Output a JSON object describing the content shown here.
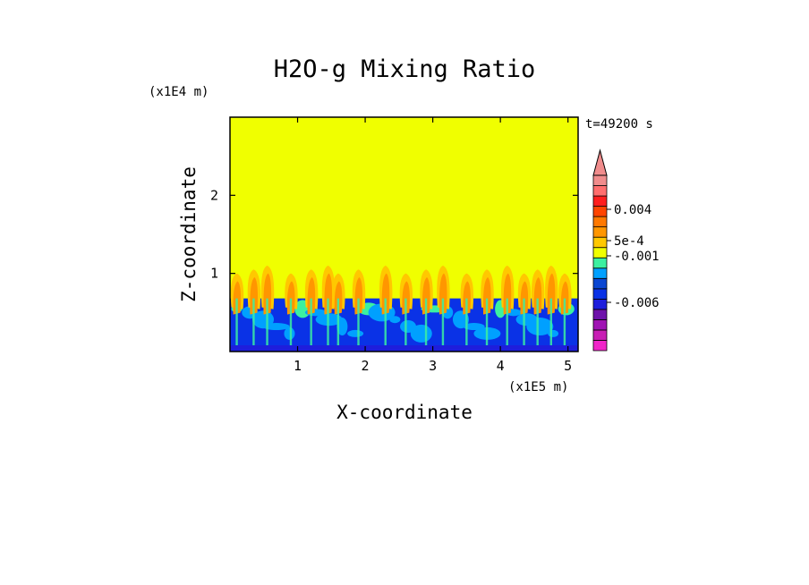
{
  "chart_data": {
    "type": "heatmap",
    "title": "H2O-g Mixing Ratio",
    "xlabel": "X-coordinate",
    "ylabel": "Z-coordinate",
    "x_scale_label": "(x1E5 m)",
    "z_scale_label": "(x1E4 m)",
    "time_label": "t=49200 s",
    "xlim": [
      0,
      5.15
    ],
    "zlim": [
      0,
      3.0
    ],
    "x_ticks": [
      1,
      2,
      3,
      4,
      5
    ],
    "z_ticks": [
      1,
      2
    ],
    "x_tick_labels": [
      "1",
      "2",
      "3",
      "4",
      "5"
    ],
    "z_tick_labels": [
      "1",
      "2"
    ],
    "background_value_color": "#f0ff00",
    "boundary_layer_top": 0.68,
    "colorbar": {
      "colors": [
        "#f025c8",
        "#c81eb4",
        "#a013b4",
        "#6e12aa",
        "#1e1edc",
        "#0a32e6",
        "#0a46d2",
        "#00a0ff",
        "#3cf0a0",
        "#f0ff00",
        "#ffc800",
        "#ff9600",
        "#ff7800",
        "#ff4400",
        "#ff1e1e",
        "#ff6e6e",
        "#f08c8c"
      ],
      "tick_labels": [
        "0.004",
        "5e-4",
        "-0.001",
        "-0.006"
      ],
      "tick_values": [
        0.004,
        0.0005,
        -0.001,
        -0.006
      ],
      "extend": "max"
    },
    "plumes_x": [
      0.1,
      0.35,
      0.55,
      0.9,
      1.2,
      1.45,
      1.6,
      1.9,
      2.3,
      2.6,
      2.9,
      3.15,
      3.5,
      3.8,
      4.1,
      4.35,
      4.55,
      4.75,
      4.95
    ]
  }
}
